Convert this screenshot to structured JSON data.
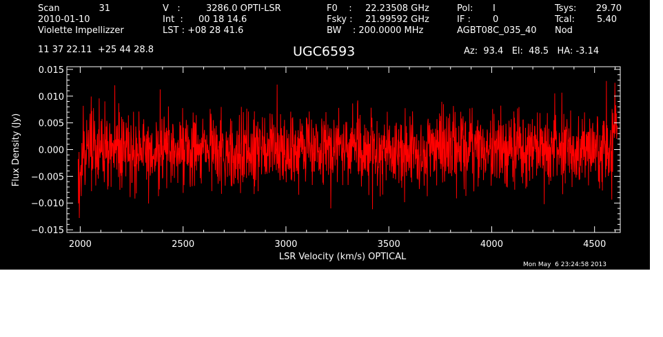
{
  "header": {
    "col1": {
      "scan_label": "Scan",
      "scan_value": "31",
      "date": "2010-01-10",
      "observer": "Violette Impellizzer",
      "coords": "11 37 22.11  +25 44 28.8"
    },
    "col2": {
      "v_label": "V   :",
      "v_value": "3286.0 OPTI-LSR",
      "int_label": "Int  :",
      "int_value": "00 18 14.6",
      "lst_label": "LST : +08 28 41.6"
    },
    "col3": {
      "f0_label": "F0    :",
      "f0_value": "22.23508 GHz",
      "fsky_label": "Fsky :",
      "fsky_value": "21.99592 GHz",
      "bw_label": "BW    : 200.0000 MHz"
    },
    "col4": {
      "pol_label": "Pol:",
      "pol_value": "I",
      "if_label": "IF :",
      "if_value": "0",
      "project": "AGBT08C_035_40"
    },
    "col5": {
      "tsys_label": "Tsys:",
      "tsys_value": "29.70",
      "tcal_label": "Tcal:",
      "tcal_value": "5.40",
      "mode": "Nod"
    },
    "pointing": "Az:  93.4   El:  48.5   HA: -3.14"
  },
  "source_name": "UGC6593",
  "timestamp": "Mon May  6 23:24:58 2013",
  "colors": {
    "background": "#000000",
    "foreground": "#ffffff",
    "spectrum": "#ff0000"
  },
  "chart_data": {
    "type": "line",
    "title": "UGC6593",
    "xlabel": "LSR Velocity (km/s) OPTICAL",
    "ylabel": "Flux Density (Jy)",
    "xlim": [
      1935,
      4625
    ],
    "ylim": [
      -0.0155,
      0.0155
    ],
    "xticks": [
      2000,
      2500,
      3000,
      3500,
      4000,
      4500
    ],
    "xtick_labels": [
      "2000",
      "2500",
      "3000",
      "3500",
      "4000",
      "4500"
    ],
    "yticks": [
      -0.015,
      -0.01,
      -0.005,
      0.0,
      0.005,
      0.01,
      0.015
    ],
    "ytick_labels": [
      "−0.015",
      "−0.010",
      "−0.005",
      "0.000",
      "0.005",
      "0.010",
      "0.015"
    ],
    "grid": false,
    "legend": "none",
    "series": [
      {
        "x_start": 1990,
        "x_end": 4610,
        "n_points": 1900,
        "noise_rms": 0.0035,
        "baseline": 0.0,
        "min_feature": {
          "x": 1995,
          "y": -0.0128
        },
        "max_feature": {
          "x": 4598,
          "y": 0.0125
        }
      }
    ]
  }
}
